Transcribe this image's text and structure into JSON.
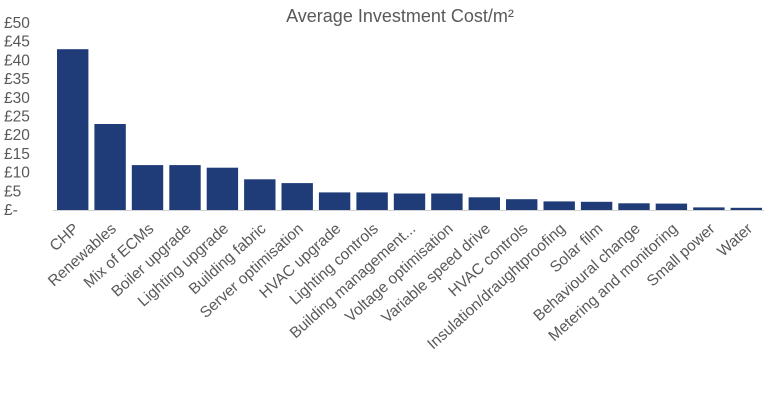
{
  "chart_data": {
    "type": "bar",
    "title": "Average Investment Cost/m²",
    "xlabel": "",
    "ylabel": "",
    "ylim": [
      0,
      50
    ],
    "yticks": [
      0,
      5,
      10,
      15,
      20,
      25,
      30,
      35,
      40,
      45,
      50
    ],
    "ytick_labels": [
      "£-",
      "£5",
      "£10",
      "£15",
      "£20",
      "£25",
      "£30",
      "£35",
      "£40",
      "£45",
      "£50"
    ],
    "categories": [
      "CHP",
      "Renewables",
      "Mix of ECMs",
      "Boiler upgrade",
      "Lighting upgrade",
      "Building fabric",
      "Server optimisation",
      "HVAC upgrade",
      "Lighting controls",
      "Building management...",
      "Voltage optimisation",
      "Variable speed drive",
      "HVAC controls",
      "Insulation/draughtproofing",
      "Solar film",
      "Behavioural change",
      "Metering and monitoring",
      "Small power",
      "Water"
    ],
    "values": [
      43,
      23,
      12,
      12,
      11.3,
      8.2,
      7.2,
      4.7,
      4.7,
      4.4,
      4.4,
      3.4,
      2.9,
      2.3,
      2.2,
      1.8,
      1.7,
      0.7,
      0.6
    ],
    "colors": {
      "bar": "#1f3c78",
      "text": "#595959",
      "axis": "#d0d0d0"
    },
    "grid": false,
    "legend": "none"
  }
}
